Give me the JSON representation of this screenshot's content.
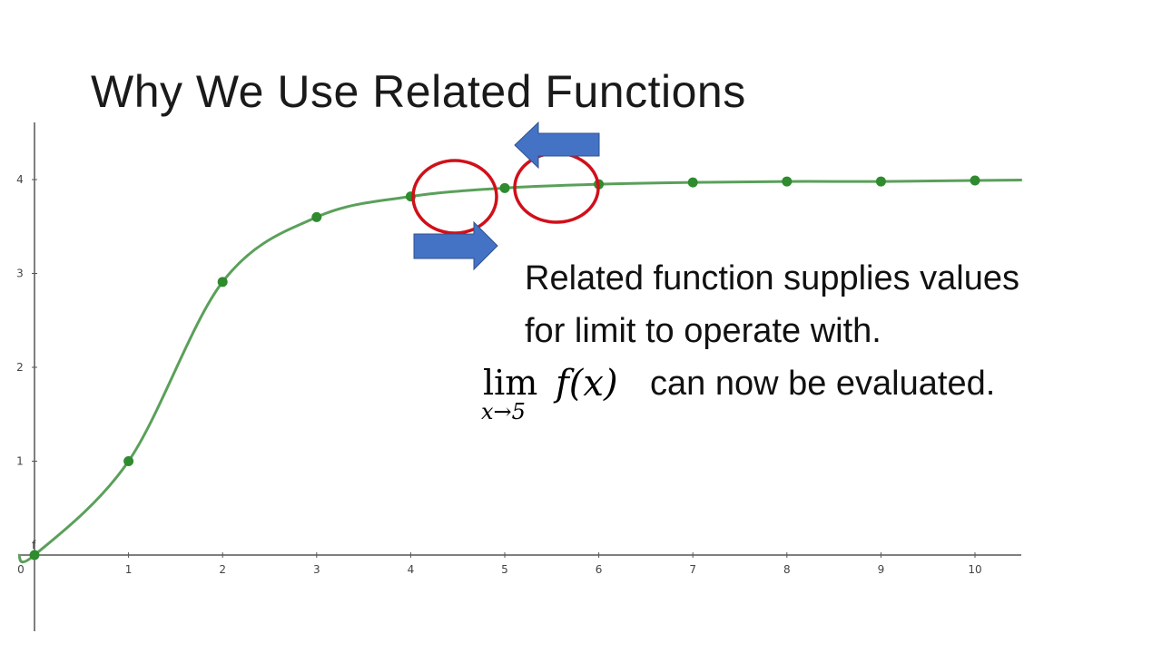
{
  "slide": {
    "title": "Why We Use Related Functions",
    "line1": "Related function supplies values",
    "line2": "for limit to operate with.",
    "limit": {
      "operator": "lim",
      "subscript": "x→5",
      "expression": "f(x)",
      "rest": "can now be evaluated."
    }
  },
  "chart_data": {
    "type": "line",
    "title": "",
    "xlabel": "",
    "ylabel": "",
    "curve_label": "f",
    "xlim": [
      -0.2,
      10.5
    ],
    "ylim": [
      -0.8,
      4.5
    ],
    "x_ticks": [
      "0",
      "1",
      "2",
      "3",
      "4",
      "5",
      "6",
      "7",
      "8",
      "9",
      "10"
    ],
    "y_ticks": [
      "1",
      "2",
      "3",
      "4"
    ],
    "grid": false,
    "points": {
      "x": [
        0,
        1,
        2,
        3,
        4,
        5,
        6,
        7,
        8,
        9,
        10
      ],
      "y": [
        0,
        1,
        2.91,
        3.6,
        3.82,
        3.91,
        3.95,
        3.97,
        3.98,
        3.98,
        3.99
      ]
    },
    "curve_color": "#5aa05a",
    "point_color": "#2e8b2e",
    "highlights": [
      {
        "type": "circle",
        "around_x": 4.5,
        "color": "#d0101a"
      },
      {
        "type": "circle",
        "around_x": 5.5,
        "color": "#d0101a"
      },
      {
        "type": "arrow",
        "direction": "right",
        "color": "#4472c4"
      },
      {
        "type": "arrow",
        "direction": "left",
        "color": "#4472c4"
      }
    ]
  }
}
